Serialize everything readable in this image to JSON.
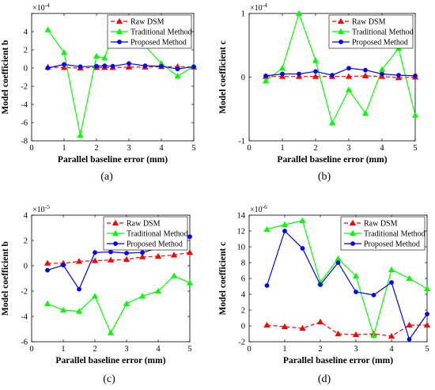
{
  "chart_data": [
    {
      "type": "line",
      "panel_label": "(a)",
      "xlabel": "Parallel baseline error (mm)",
      "ylabel": "Model coefficient b",
      "exponent": "×10",
      "exponent_power": "-4",
      "xlim": [
        0,
        5
      ],
      "ylim": [
        -8,
        6
      ],
      "xticks": [
        0,
        1,
        2,
        3,
        4,
        5
      ],
      "yticks": [
        -8,
        -6,
        -4,
        -2,
        0,
        2,
        4,
        6
      ],
      "ytick_labels": [
        "-8",
        "-6",
        "-4",
        "-2",
        "0",
        "2",
        "4",
        ""
      ],
      "legend_position": "top-right",
      "x": [
        0.5,
        1,
        1.5,
        2,
        2.25,
        2.5,
        3,
        3.5,
        4,
        4.5,
        5
      ],
      "series": [
        {
          "name": "Raw DSM",
          "color": "#ff0000",
          "dash": "dash",
          "marker": "triangle",
          "values": [
            0.1,
            0.05,
            0.0,
            0.05,
            0.05,
            0.05,
            0.1,
            0.1,
            0.15,
            0.15,
            0.1
          ]
        },
        {
          "name": "Traditional Method",
          "color": "#00ff00",
          "dash": "solid",
          "marker": "triangle",
          "values": [
            4.2,
            1.7,
            -7.4,
            1.3,
            1.1,
            3.6,
            4.3,
            2.4,
            0.5,
            -0.9,
            0.2
          ]
        },
        {
          "name": "Proposed Method",
          "color": "#0000ff",
          "dash": "solid",
          "marker": "circle",
          "values": [
            0.0,
            0.4,
            0.15,
            0.2,
            0.25,
            0.2,
            0.5,
            0.25,
            0.2,
            -0.1,
            0.15
          ]
        }
      ]
    },
    {
      "type": "line",
      "panel_label": "(b)",
      "xlabel": "Parallel baseline error (mm)",
      "ylabel": "Model coefficient c",
      "exponent": "×10",
      "exponent_power": "-4",
      "xlim": [
        0,
        5
      ],
      "ylim": [
        -1,
        1
      ],
      "xticks": [
        0,
        1,
        2,
        3,
        4,
        5
      ],
      "yticks": [
        -1,
        0,
        1
      ],
      "ytick_labels": [
        "-1",
        "0",
        "1"
      ],
      "legend_position": "top-right",
      "x": [
        0.5,
        1,
        1.5,
        2,
        2.5,
        3,
        3.5,
        4,
        4.5,
        5
      ],
      "series": [
        {
          "name": "Raw DSM",
          "color": "#ff0000",
          "dash": "dash",
          "marker": "triangle",
          "values": [
            0.01,
            0.01,
            0.01,
            0.01,
            0.01,
            0.01,
            0.02,
            0.01,
            -0.01,
            0.0
          ]
        },
        {
          "name": "Traditional Method",
          "color": "#00ff00",
          "dash": "solid",
          "marker": "triangle",
          "values": [
            -0.06,
            0.14,
            1.0,
            0.26,
            -0.72,
            -0.2,
            -0.57,
            0.12,
            0.45,
            -0.6
          ]
        },
        {
          "name": "Proposed Method",
          "color": "#0000ff",
          "dash": "solid",
          "marker": "circle",
          "values": [
            0.02,
            0.05,
            0.05,
            0.09,
            0.03,
            0.14,
            0.11,
            0.05,
            0.03,
            0.02
          ]
        }
      ]
    },
    {
      "type": "line",
      "panel_label": "(c)",
      "xlabel": "Parallel baseline error (mm)",
      "ylabel": "Model coefficient b",
      "exponent": "×10",
      "exponent_power": "-5",
      "xlim": [
        0,
        5
      ],
      "ylim": [
        -6,
        4
      ],
      "xticks": [
        0,
        1,
        2,
        3,
        4,
        5
      ],
      "yticks": [
        -6,
        -4,
        -2,
        0,
        2,
        4
      ],
      "ytick_labels": [
        "-6",
        "-4",
        "-2",
        "0",
        "2",
        "4"
      ],
      "legend_position": "top-right",
      "x": [
        0.5,
        1,
        1.5,
        2,
        2.5,
        3,
        3.5,
        4,
        4.5,
        5
      ],
      "series": [
        {
          "name": "Raw DSM",
          "color": "#ff0000",
          "dash": "dash",
          "marker": "triangle",
          "values": [
            0.2,
            0.2,
            0.35,
            0.4,
            0.45,
            0.5,
            0.7,
            0.75,
            0.85,
            1.05
          ]
        },
        {
          "name": "Traditional Method",
          "color": "#00ff00",
          "dash": "solid",
          "marker": "triangle",
          "values": [
            -3.0,
            -3.5,
            -3.6,
            -2.4,
            -5.3,
            -3.0,
            -2.4,
            -2.0,
            -0.8,
            -1.35
          ]
        },
        {
          "name": "Proposed Method",
          "color": "#0000ff",
          "dash": "solid",
          "marker": "circle",
          "values": [
            -0.35,
            0.05,
            -1.85,
            1.05,
            1.1,
            1.0,
            1.05,
            1.4,
            1.6,
            2.3
          ]
        }
      ]
    },
    {
      "type": "line",
      "panel_label": "(d)",
      "xlabel": "Parallel baseline error (mm)",
      "ylabel": "Model coefficient c",
      "exponent": "×10",
      "exponent_power": "-6",
      "xlim": [
        0,
        5
      ],
      "ylim": [
        -2,
        14
      ],
      "xticks": [
        0,
        1,
        2,
        3,
        4,
        5
      ],
      "yticks": [
        -2,
        0,
        2,
        4,
        6,
        8,
        10,
        12,
        14
      ],
      "ytick_labels": [
        "-2",
        "0",
        "2",
        "4",
        "6",
        "8",
        "10",
        "12",
        "14"
      ],
      "legend_position": "top-right",
      "x": [
        0.5,
        1,
        1.5,
        2,
        2.5,
        3,
        3.5,
        4,
        4.5,
        5
      ],
      "series": [
        {
          "name": "Raw DSM",
          "color": "#ff0000",
          "dash": "dash",
          "marker": "triangle",
          "values": [
            0.1,
            -0.1,
            -0.3,
            0.5,
            -1.0,
            -1.1,
            -1.0,
            -1.3,
            0.1,
            0.1
          ]
        },
        {
          "name": "Traditional Method",
          "color": "#00ff00",
          "dash": "solid",
          "marker": "triangle",
          "values": [
            12.2,
            12.8,
            13.3,
            5.5,
            8.5,
            6.3,
            -1.2,
            7.1,
            6.0,
            4.7
          ]
        },
        {
          "name": "Proposed Method",
          "color": "#0000ff",
          "dash": "solid",
          "marker": "circle",
          "values": [
            5.1,
            12.0,
            9.8,
            5.2,
            8.0,
            4.3,
            3.9,
            5.5,
            -1.7,
            1.5
          ]
        }
      ]
    }
  ]
}
